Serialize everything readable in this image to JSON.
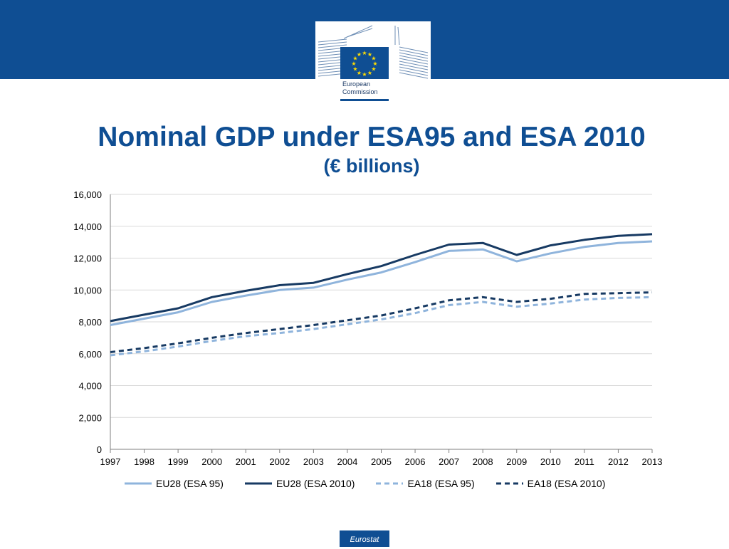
{
  "header": {
    "logo_text_line1": "European",
    "logo_text_line2": "Commission",
    "banner_color": "#0f4e93",
    "flag_color": "#0f4e93",
    "star_color": "#ffdd00",
    "logo_name": "european-commission-logo"
  },
  "chart_data": {
    "type": "line",
    "title": "Nominal GDP under ESA95 and ESA 2010",
    "subtitle": "(€ billions)",
    "xlabel": "",
    "ylabel": "",
    "x": [
      "1997",
      "1998",
      "1999",
      "2000",
      "2001",
      "2002",
      "2003",
      "2004",
      "2005",
      "2006",
      "2007",
      "2008",
      "2009",
      "2010",
      "2011",
      "2012",
      "2013"
    ],
    "yticks": [
      "0",
      "2,000",
      "4,000",
      "6,000",
      "8,000",
      "10,000",
      "12,000",
      "14,000",
      "16,000"
    ],
    "ylim": [
      0,
      16000
    ],
    "grid": true,
    "legend_position": "bottom",
    "series": [
      {
        "name": "EU28 (ESA 95)",
        "color": "#8fb4dc",
        "dashed": false,
        "values": [
          7800,
          8200,
          8600,
          9250,
          9650,
          10000,
          10150,
          10650,
          11100,
          11750,
          12450,
          12550,
          11800,
          12300,
          12700,
          12950,
          13050
        ]
      },
      {
        "name": "EU28 (ESA 2010)",
        "color": "#173a63",
        "dashed": false,
        "values": [
          8050,
          8450,
          8850,
          9550,
          9950,
          10300,
          10450,
          11000,
          11500,
          12200,
          12850,
          12950,
          12200,
          12800,
          13150,
          13400,
          13500
        ]
      },
      {
        "name": "EA18 (ESA 95)",
        "color": "#8fb4dc",
        "dashed": true,
        "values": [
          5900,
          6150,
          6450,
          6800,
          7100,
          7300,
          7550,
          7850,
          8150,
          8550,
          9050,
          9250,
          8950,
          9150,
          9400,
          9500,
          9550
        ]
      },
      {
        "name": "EA18 (ESA 2010)",
        "color": "#173a63",
        "dashed": true,
        "values": [
          6100,
          6350,
          6650,
          7000,
          7300,
          7550,
          7800,
          8100,
          8400,
          8850,
          9350,
          9550,
          9250,
          9450,
          9750,
          9800,
          9850
        ]
      }
    ]
  },
  "footer": {
    "tag": "Eurostat"
  }
}
